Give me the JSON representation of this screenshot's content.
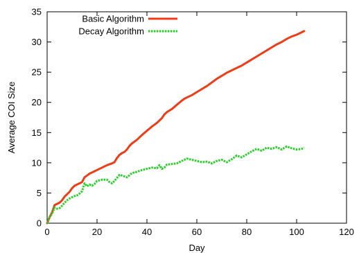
{
  "chart_data": {
    "type": "line",
    "title": "",
    "xlabel": "Day",
    "ylabel": "Average COI Size",
    "xlim": [
      0,
      120
    ],
    "ylim": [
      0,
      35
    ],
    "xticks": [
      0,
      20,
      40,
      60,
      80,
      100,
      120
    ],
    "yticks": [
      0,
      5,
      10,
      15,
      20,
      25,
      30,
      35
    ],
    "grid": false,
    "legend_position": "top-left",
    "series": [
      {
        "name": "Basic Algorithm",
        "color": "#f03c14",
        "style": "solid",
        "x": [
          0,
          1,
          2,
          3,
          4,
          5,
          6,
          7,
          8,
          9,
          10,
          11,
          12,
          13,
          14,
          15,
          16,
          17,
          18,
          19,
          20,
          22,
          24,
          26,
          27,
          28,
          29,
          30,
          31,
          32,
          33,
          34,
          36,
          38,
          40,
          42,
          44,
          45,
          46,
          47,
          48,
          50,
          52,
          54,
          55,
          56,
          58,
          60,
          62,
          64,
          66,
          68,
          70,
          72,
          74,
          76,
          78,
          80,
          82,
          84,
          86,
          88,
          90,
          92,
          94,
          96,
          98,
          100,
          102,
          103
        ],
        "y": [
          0,
          1.0,
          1.8,
          3.0,
          3.2,
          3.4,
          3.8,
          4.4,
          4.8,
          5.2,
          5.8,
          6.2,
          6.4,
          6.6,
          6.8,
          7.6,
          7.9,
          8.2,
          8.4,
          8.6,
          8.8,
          9.2,
          9.6,
          9.9,
          10.1,
          10.8,
          11.3,
          11.6,
          11.8,
          12.2,
          12.8,
          13.2,
          13.8,
          14.6,
          15.3,
          16.0,
          16.6,
          17.0,
          17.4,
          18.0,
          18.4,
          18.9,
          19.6,
          20.3,
          20.6,
          20.8,
          21.2,
          21.7,
          22.2,
          22.7,
          23.3,
          23.9,
          24.4,
          24.9,
          25.3,
          25.7,
          26.1,
          26.6,
          27.1,
          27.6,
          28.1,
          28.6,
          29.1,
          29.6,
          30.0,
          30.5,
          30.9,
          31.2,
          31.6,
          31.8
        ]
      },
      {
        "name": "Decay Algorithm",
        "color": "#22d422",
        "style": "dotted",
        "x": [
          0,
          1,
          2,
          3,
          4,
          5,
          6,
          7,
          8,
          9,
          10,
          11,
          12,
          13,
          14,
          15,
          16,
          17,
          18,
          19,
          20,
          22,
          24,
          25,
          26,
          27,
          28,
          29,
          30,
          32,
          34,
          36,
          38,
          40,
          42,
          44,
          45,
          46,
          47,
          48,
          50,
          52,
          54,
          56,
          58,
          60,
          62,
          64,
          66,
          68,
          70,
          72,
          74,
          76,
          78,
          80,
          82,
          84,
          86,
          88,
          90,
          92,
          94,
          96,
          98,
          100,
          102,
          103
        ],
        "y": [
          0,
          1.0,
          1.6,
          2.6,
          2.4,
          2.5,
          2.9,
          3.4,
          3.8,
          4.1,
          4.3,
          4.5,
          4.6,
          4.9,
          5.3,
          6.6,
          6.1,
          6.4,
          6.2,
          6.5,
          7.0,
          7.2,
          7.2,
          6.8,
          6.6,
          7.0,
          7.5,
          8.0,
          7.9,
          7.6,
          8.3,
          8.5,
          8.8,
          9.0,
          9.2,
          9.1,
          9.6,
          9.0,
          9.2,
          9.7,
          9.8,
          9.9,
          10.3,
          10.7,
          10.5,
          10.3,
          10.1,
          10.2,
          9.9,
          10.3,
          10.5,
          10.1,
          10.6,
          11.2,
          10.9,
          11.4,
          11.9,
          12.3,
          12.0,
          12.5,
          12.3,
          12.6,
          12.2,
          12.7,
          12.4,
          12.2,
          12.3,
          12.5
        ]
      }
    ]
  }
}
